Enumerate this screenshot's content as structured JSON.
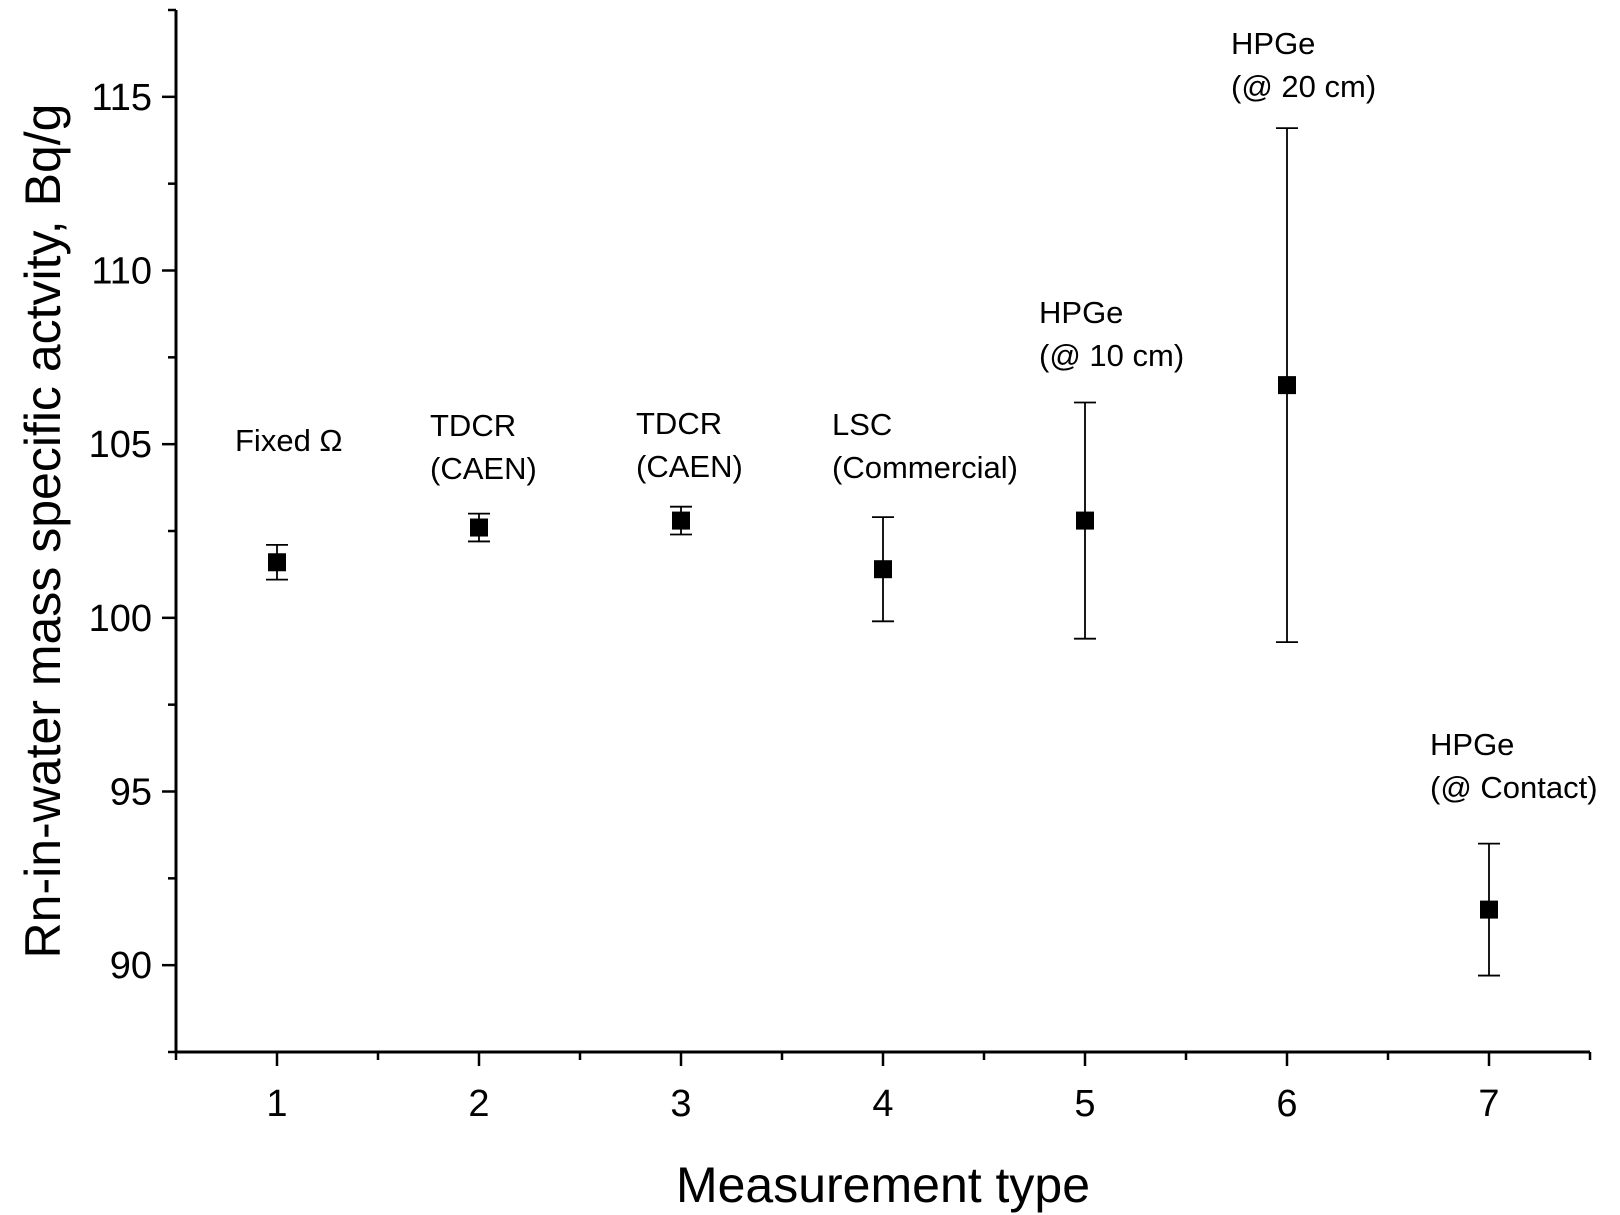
{
  "chart_data": {
    "type": "scatter",
    "title": "",
    "xlabel": "Measurement type",
    "ylabel": "Rn-in-water mass specific actvity, Bq/g",
    "xlim": [
      0.5,
      7.5
    ],
    "ylim": [
      87.5,
      117.5
    ],
    "x_ticks": [
      1,
      2,
      3,
      4,
      5,
      6,
      7
    ],
    "y_ticks": [
      90,
      95,
      100,
      105,
      110,
      115
    ],
    "grid": false,
    "legend": "none",
    "marker": "square",
    "color": "#000000",
    "points": [
      {
        "x": 1,
        "y": 101.6,
        "err_low": 101.1,
        "err_high": 102.1,
        "label": [
          "Fixed Ω"
        ]
      },
      {
        "x": 2,
        "y": 102.6,
        "err_low": 102.2,
        "err_high": 103.0,
        "label": [
          "TDCR",
          "(CAEN)"
        ]
      },
      {
        "x": 3,
        "y": 102.8,
        "err_low": 102.4,
        "err_high": 103.2,
        "label": [
          "TDCR",
          "(CAEN)"
        ]
      },
      {
        "x": 4,
        "y": 101.4,
        "err_low": 99.9,
        "err_high": 102.9,
        "label": [
          "LSC",
          "(Commercial)"
        ]
      },
      {
        "x": 5,
        "y": 102.8,
        "err_low": 99.4,
        "err_high": 106.2,
        "label": [
          "HPGe",
          "(@ 10 cm)"
        ]
      },
      {
        "x": 6,
        "y": 106.7,
        "err_low": 99.3,
        "err_high": 114.1,
        "label": [
          "HPGe",
          "(@ 20 cm)"
        ]
      },
      {
        "x": 7,
        "y": 91.6,
        "err_low": 89.7,
        "err_high": 93.5,
        "label": [
          "HPGe",
          "(@ Contact)"
        ]
      }
    ]
  }
}
